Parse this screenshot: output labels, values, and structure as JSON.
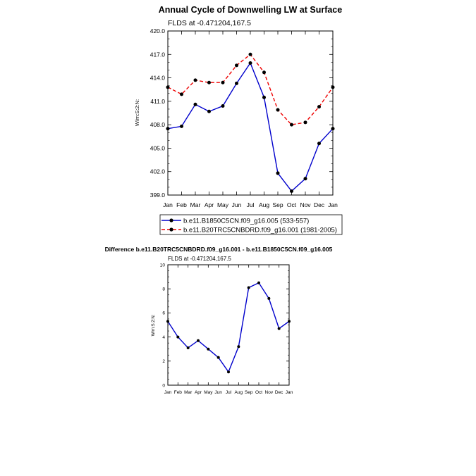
{
  "chart_data": [
    {
      "type": "line",
      "title": "Annual Cycle of Downwelling LW at Surface",
      "subtitle": "FLDS at -0.471204,167.5",
      "ylabel": "W/m:S:2:N:",
      "xlabel": "",
      "categories": [
        "Jan",
        "Feb",
        "Mar",
        "Apr",
        "May",
        "Jun",
        "Jul",
        "Aug",
        "Sep",
        "Oct",
        "Nov",
        "Dec",
        "Jan"
      ],
      "ylim": [
        399.0,
        420.0
      ],
      "yticks": [
        "420.0",
        "417.0",
        "414.0",
        "411.0",
        "408.0",
        "405.0",
        "402.0",
        "399.0"
      ],
      "grid": false,
      "legend_position": "bottom",
      "series": [
        {
          "name": "b.e11.B1850C5CN.f09_g16.005 (533-557)",
          "color": "#0000cc",
          "dash": "solid",
          "values": [
            407.5,
            407.8,
            410.6,
            409.7,
            410.4,
            413.3,
            415.9,
            411.5,
            401.8,
            399.5,
            401.1,
            405.6,
            407.5
          ]
        },
        {
          "name": "b.e11.B20TRC5CNBDRD.f09_g16.001 (1981-2005)",
          "color": "#ee0000",
          "dash": "dashed",
          "values": [
            412.8,
            411.9,
            413.7,
            413.4,
            413.4,
            415.6,
            417.0,
            414.7,
            409.9,
            408.0,
            408.3,
            410.3,
            412.8
          ]
        }
      ]
    },
    {
      "type": "line",
      "title": "Difference b.e11.B20TRC5CNBDRD.f09_g16.001 - b.e11.B1850C5CN.f09_g16.005",
      "subtitle": "FLDS at -0.471204,167.5",
      "ylabel": "W/m:S:2:N:",
      "xlabel": "",
      "categories": [
        "Jan",
        "Feb",
        "Mar",
        "Apr",
        "May",
        "Jun",
        "Jul",
        "Aug",
        "Sep",
        "Oct",
        "Nov",
        "Dec",
        "Jan"
      ],
      "ylim": [
        0,
        10
      ],
      "yticks": [
        "10",
        "8",
        "6",
        "4",
        "2",
        "0"
      ],
      "grid": false,
      "series": [
        {
          "color": "#0000cc",
          "dash": "solid",
          "values": [
            5.3,
            4.0,
            3.1,
            3.7,
            3.0,
            2.3,
            1.1,
            3.2,
            8.1,
            8.5,
            7.2,
            4.7,
            5.3
          ]
        }
      ]
    }
  ]
}
